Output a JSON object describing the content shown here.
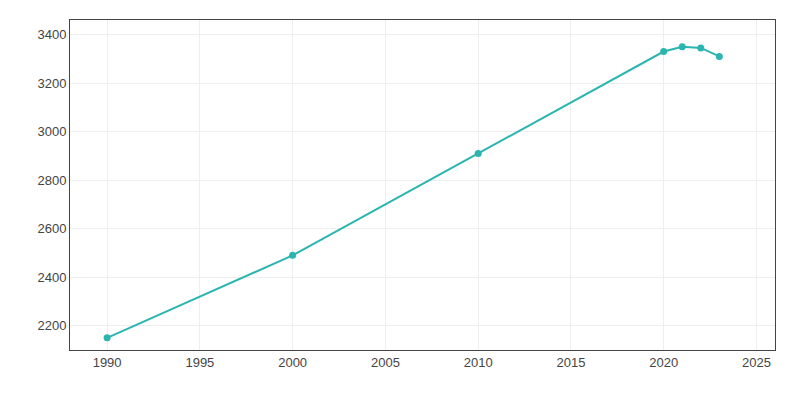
{
  "chart_data": {
    "type": "line",
    "x": [
      1990,
      2000,
      2010,
      2020,
      2021,
      2022,
      2023
    ],
    "values": [
      2150,
      2490,
      2910,
      3330,
      3350,
      3345,
      3310
    ],
    "color": "#2ab5b0",
    "marker": "circle",
    "xlim": [
      1988,
      2026
    ],
    "ylim": [
      2100,
      3460
    ],
    "xticks": [
      1990,
      1995,
      2000,
      2005,
      2010,
      2015,
      2020,
      2025
    ],
    "yticks": [
      2200,
      2400,
      2600,
      2800,
      3000,
      3200,
      3400
    ],
    "grid": true
  }
}
